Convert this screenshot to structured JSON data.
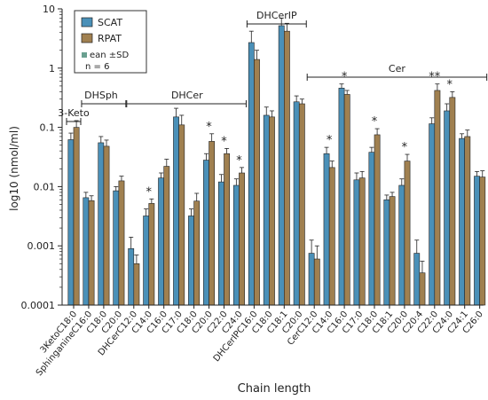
{
  "chart_data": {
    "type": "bar",
    "ylabel": "log10 (nmol/ml)",
    "xlabel": "Chain length",
    "yscale": "log",
    "ylim": [
      0.0001,
      10
    ],
    "y_ticks": [
      {
        "value": 10,
        "label": "10"
      },
      {
        "value": 1,
        "label": "1"
      },
      {
        "value": 0.1,
        "label": "0.1"
      },
      {
        "value": 0.01,
        "label": "0.01"
      },
      {
        "value": 0.001,
        "label": "0.001"
      },
      {
        "value": 0.0001,
        "label": "0.0001"
      }
    ],
    "legend": {
      "placement": "top-left",
      "entries": [
        "SCAT",
        "RPAT"
      ],
      "notes": [
        "ean ±SD",
        "n = 6"
      ]
    },
    "colors": {
      "SCAT": "#4a90b8",
      "RPAT": "#a08050"
    },
    "categories": [
      "3KetoC18:0",
      "SphinganineC16:0",
      "C18:0",
      "C20:0",
      "DHCerC12:0",
      "C14:0",
      "C16:0",
      "C17:0",
      "C18:0",
      "C20:0",
      "C22:0",
      "C24:0",
      "DHCerIPC16:0",
      "C18:0",
      "C18:1",
      "C20:0",
      "CerC12:0",
      "C14:0",
      "C16:0",
      "C17:0",
      "C18:0",
      "C18:1",
      "C20:0",
      "C20:4",
      "C22:0",
      "C24:0",
      "C24:1",
      "C26:0"
    ],
    "series": [
      {
        "name": "SCAT",
        "values": [
          0.062,
          0.0065,
          0.055,
          0.0085,
          0.0009,
          0.0032,
          0.014,
          0.15,
          0.0032,
          0.028,
          0.012,
          0.0105,
          2.7,
          0.16,
          5.2,
          0.27,
          0.00075,
          0.036,
          0.46,
          0.013,
          0.038,
          0.006,
          0.0105,
          0.00075,
          0.115,
          0.19,
          0.065,
          0.015
        ],
        "errors": [
          0.018,
          0.0015,
          0.015,
          0.0015,
          0.0005,
          0.001,
          0.003,
          0.06,
          0.001,
          0.008,
          0.004,
          0.003,
          1.5,
          0.06,
          1.8,
          0.07,
          0.0005,
          0.01,
          0.08,
          0.004,
          0.008,
          0.0012,
          0.003,
          0.0005,
          0.03,
          0.06,
          0.013,
          0.003
        ]
      },
      {
        "name": "RPAT",
        "values": [
          0.1,
          0.0058,
          0.048,
          0.0125,
          0.0005,
          0.0052,
          0.022,
          0.11,
          0.0057,
          0.058,
          0.036,
          0.017,
          1.4,
          0.15,
          4.2,
          0.25,
          0.0006,
          0.021,
          0.36,
          0.014,
          0.075,
          0.0068,
          0.027,
          0.00035,
          0.42,
          0.32,
          0.07,
          0.0145
        ],
        "errors": [
          0.03,
          0.0012,
          0.013,
          0.0025,
          0.0002,
          0.001,
          0.007,
          0.05,
          0.002,
          0.02,
          0.008,
          0.004,
          0.6,
          0.04,
          1.5,
          0.05,
          0.0004,
          0.006,
          0.06,
          0.004,
          0.02,
          0.0012,
          0.008,
          0.0002,
          0.12,
          0.08,
          0.02,
          0.004
        ]
      }
    ],
    "significance": [
      {
        "category_index": 5,
        "label": "*"
      },
      {
        "category_index": 9,
        "label": "*"
      },
      {
        "category_index": 10,
        "label": "*"
      },
      {
        "category_index": 11,
        "label": "*"
      },
      {
        "category_index": 17,
        "label": "*"
      },
      {
        "category_index": 18,
        "label": "*"
      },
      {
        "category_index": 20,
        "label": "*"
      },
      {
        "category_index": 22,
        "label": "*"
      },
      {
        "category_index": 24,
        "label": "**"
      },
      {
        "category_index": 25,
        "label": "*"
      }
    ],
    "groups": [
      {
        "label": "3-Keto",
        "from": 0,
        "to": 0
      },
      {
        "label": "DHSph",
        "from": 1,
        "to": 3
      },
      {
        "label": "DHCer",
        "from": 4,
        "to": 11
      },
      {
        "label": "DHCerIP",
        "from": 12,
        "to": 15
      },
      {
        "label": "Cer",
        "from": 16,
        "to": 27
      }
    ]
  }
}
